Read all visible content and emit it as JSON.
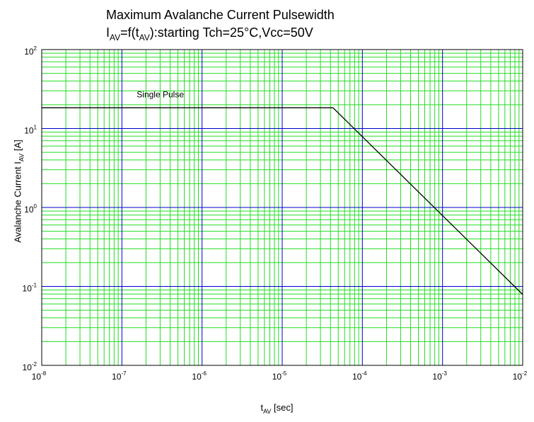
{
  "chart_data": {
    "type": "line",
    "title": {
      "line1": "Maximum Avalanche Current Pulsewidth",
      "line2_main": "I",
      "line2_sub": "AV",
      "line2_mid": "=f(t",
      "line2_sub2": "AV",
      "line2_rest": "):starting Tch=25°C,Vcc=50V"
    },
    "xlabel": {
      "main": "t",
      "sub": "AV",
      "rest": " [sec]"
    },
    "ylabel": {
      "main": "Avalanche Current I",
      "sub": "AV",
      "rest": " [A]"
    },
    "x_scale": "log",
    "y_scale": "log",
    "xlim": [
      1e-08,
      0.01
    ],
    "ylim": [
      0.01,
      100
    ],
    "x_ticks": [
      {
        "value": 1e-08,
        "base": "10",
        "exp": "-8"
      },
      {
        "value": 1e-07,
        "base": "10",
        "exp": "-7"
      },
      {
        "value": 1e-06,
        "base": "10",
        "exp": "-6"
      },
      {
        "value": 1e-05,
        "base": "10",
        "exp": "-5"
      },
      {
        "value": 0.0001,
        "base": "10",
        "exp": "-4"
      },
      {
        "value": 0.001,
        "base": "10",
        "exp": "-3"
      },
      {
        "value": 0.01,
        "base": "10",
        "exp": "-2"
      }
    ],
    "y_ticks": [
      {
        "value": 0.01,
        "base": "10",
        "exp": "-2"
      },
      {
        "value": 0.1,
        "base": "10",
        "exp": "-1"
      },
      {
        "value": 1,
        "base": "10",
        "exp": "0"
      },
      {
        "value": 10,
        "base": "10",
        "exp": "1"
      },
      {
        "value": 100,
        "base": "10",
        "exp": "2"
      }
    ],
    "grid": {
      "major": true,
      "minor": true,
      "major_color": "#0000cc",
      "minor_color": "#22dd22"
    },
    "series": [
      {
        "color": "#000000",
        "x": [
          1e-08,
          4.3e-05,
          0.01
        ],
        "y": [
          18.3,
          18.3,
          0.079
        ]
      }
    ],
    "annotations": [
      {
        "text": "Single Pulse",
        "x": 1.5e-07,
        "y": 27
      }
    ]
  }
}
